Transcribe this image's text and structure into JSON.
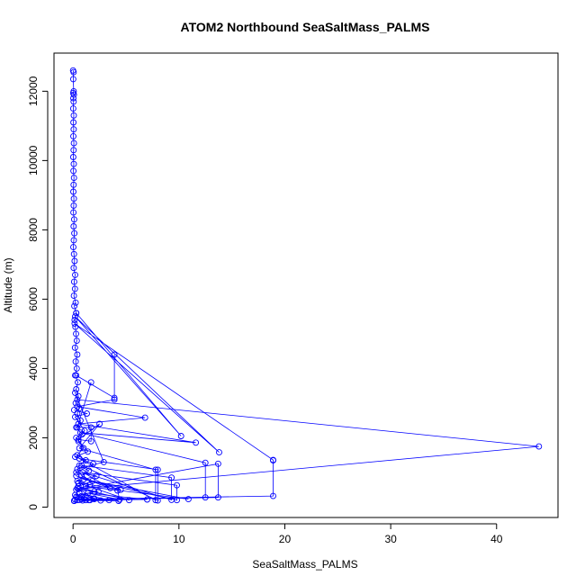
{
  "chart_data": {
    "type": "scatter",
    "title": "ATOM2 Northbound SeaSaltMass_PALMS",
    "xlabel": "SeaSaltMass_PALMS",
    "ylabel": "Altitude (m)",
    "xlim": [
      -1.8,
      45.8
    ],
    "ylim": [
      -300,
      13100
    ],
    "xticks": [
      0,
      10,
      20,
      30,
      40
    ],
    "yticks": [
      0,
      2000,
      4000,
      6000,
      8000,
      10000,
      12000
    ],
    "grid": false,
    "point_style": "open-circle-connected",
    "color": "#0000ff",
    "series": [
      {
        "values": [
          [
            0.0,
            12600
          ],
          [
            0.05,
            12550
          ],
          [
            0.02,
            12350
          ],
          [
            0.06,
            12000
          ],
          [
            0.01,
            11950
          ],
          [
            0.08,
            11900
          ],
          [
            0.03,
            11800
          ],
          [
            0.05,
            11700
          ],
          [
            0.02,
            11500
          ],
          [
            0.07,
            11300
          ],
          [
            0.04,
            11100
          ],
          [
            0.06,
            10900
          ],
          [
            0.03,
            10700
          ],
          [
            0.08,
            10500
          ],
          [
            0.05,
            10300
          ],
          [
            0.02,
            10100
          ],
          [
            0.07,
            9900
          ],
          [
            0.04,
            9700
          ],
          [
            0.09,
            9500
          ],
          [
            0.05,
            9300
          ],
          [
            0.03,
            9100
          ],
          [
            0.08,
            8900
          ],
          [
            0.06,
            8700
          ],
          [
            0.04,
            8500
          ],
          [
            0.1,
            8300
          ],
          [
            0.05,
            8100
          ],
          [
            0.12,
            7900
          ],
          [
            0.07,
            7700
          ],
          [
            0.03,
            7500
          ],
          [
            0.09,
            7300
          ],
          [
            0.15,
            7100
          ],
          [
            0.06,
            6900
          ],
          [
            0.2,
            6700
          ],
          [
            0.1,
            6500
          ],
          [
            0.18,
            6300
          ],
          [
            0.08,
            6100
          ],
          [
            0.25,
            5900
          ],
          [
            0.12,
            5800
          ],
          [
            0.3,
            5600
          ],
          [
            0.15,
            5400
          ],
          [
            0.22,
            5200
          ],
          [
            0.28,
            5000
          ],
          [
            0.35,
            4800
          ],
          [
            0.18,
            4600
          ],
          [
            0.4,
            4400
          ],
          [
            0.25,
            4200
          ],
          [
            0.35,
            4000
          ],
          [
            0.2,
            3800
          ],
          [
            0.45,
            3600
          ],
          [
            0.3,
            3400
          ],
          [
            0.5,
            3200
          ],
          [
            0.25,
            3000
          ],
          [
            0.6,
            2850
          ],
          [
            0.4,
            2700
          ],
          [
            0.7,
            2500
          ],
          [
            0.3,
            2300
          ],
          [
            0.85,
            2100
          ],
          [
            0.5,
            1900
          ],
          [
            1.0,
            1700
          ],
          [
            0.4,
            1500
          ],
          [
            1.2,
            1350
          ],
          [
            0.6,
            1200
          ],
          [
            1.5,
            1050
          ],
          [
            0.8,
            900
          ],
          [
            1.8,
            750
          ],
          [
            0.5,
            600
          ],
          [
            2.0,
            450
          ],
          [
            0.3,
            300
          ],
          [
            0.1,
            180
          ]
        ]
      },
      {
        "values": [
          [
            0.3,
            5600
          ],
          [
            10.2,
            2050
          ],
          [
            0.2,
            5500
          ],
          [
            13.8,
            1580
          ],
          [
            0.15,
            5300
          ],
          [
            18.9,
            1360
          ],
          [
            18.9,
            1350
          ],
          [
            18.9,
            320
          ],
          [
            0.2,
            220
          ]
        ]
      },
      {
        "values": [
          [
            0.4,
            3100
          ],
          [
            44.0,
            1750
          ],
          [
            0.5,
            520
          ],
          [
            13.7,
            1250
          ],
          [
            13.7,
            280
          ],
          [
            0.6,
            210
          ]
        ]
      },
      {
        "values": [
          [
            0.3,
            3800
          ],
          [
            3.9,
            3150
          ],
          [
            3.9,
            4400
          ],
          [
            3.9,
            3100
          ],
          [
            0.4,
            2900
          ],
          [
            6.8,
            2580
          ],
          [
            0.5,
            2400
          ],
          [
            11.6,
            1860
          ],
          [
            0.7,
            2150
          ],
          [
            12.5,
            1280
          ],
          [
            12.5,
            280
          ],
          [
            0.8,
            230
          ]
        ]
      },
      {
        "values": [
          [
            1.7,
            3600
          ],
          [
            0.4,
            2300
          ],
          [
            1.7,
            2300
          ],
          [
            1.7,
            1900
          ],
          [
            0.5,
            1950
          ],
          [
            2.5,
            2400
          ],
          [
            0.6,
            1700
          ],
          [
            7.8,
            1080
          ],
          [
            7.8,
            200
          ],
          [
            0.6,
            1400
          ],
          [
            8.0,
            1080
          ],
          [
            8.0,
            190
          ],
          [
            0.8,
            1200
          ],
          [
            9.3,
            850
          ],
          [
            9.3,
            210
          ],
          [
            0.9,
            1000
          ],
          [
            9.8,
            630
          ],
          [
            9.8,
            200
          ],
          [
            1.0,
            800
          ],
          [
            10.9,
            230
          ],
          [
            1.2,
            600
          ],
          [
            4.2,
            480
          ],
          [
            4.4,
            220
          ],
          [
            1.4,
            400
          ],
          [
            7.0,
            220
          ],
          [
            1.6,
            200
          ]
        ]
      },
      {
        "values": [
          [
            0.2,
            3300
          ],
          [
            2.9,
            1300
          ],
          [
            0.4,
            1100
          ],
          [
            3.5,
            550
          ],
          [
            0.3,
            900
          ],
          [
            4.5,
            500
          ],
          [
            0.5,
            700
          ],
          [
            5.3,
            200
          ],
          [
            0.4,
            550
          ],
          [
            2.0,
            250
          ],
          [
            0.6,
            400
          ],
          [
            3.4,
            200
          ],
          [
            0.8,
            300
          ],
          [
            1.2,
            200
          ],
          [
            2.0,
            230
          ],
          [
            0.9,
            190
          ],
          [
            4.3,
            180
          ],
          [
            1.5,
            200
          ],
          [
            2.6,
            190
          ],
          [
            0.4,
            200
          ]
        ]
      },
      {
        "values": [
          [
            0.1,
            2800
          ],
          [
            1.3,
            2700
          ],
          [
            0.2,
            2600
          ],
          [
            1.1,
            2200
          ],
          [
            0.3,
            2000
          ],
          [
            1.4,
            1600
          ],
          [
            0.2,
            1450
          ],
          [
            1.9,
            1250
          ],
          [
            0.3,
            1000
          ],
          [
            2.2,
            900
          ],
          [
            0.4,
            750
          ],
          [
            1.6,
            650
          ],
          [
            0.3,
            500
          ],
          [
            2.4,
            450
          ],
          [
            0.2,
            350
          ],
          [
            1.0,
            250
          ],
          [
            0.1,
            180
          ]
        ]
      }
    ]
  }
}
